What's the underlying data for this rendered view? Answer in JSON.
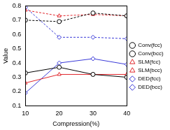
{
  "chart_data": {
    "type": "line",
    "x_label": "Compression(%)",
    "y_label": "Value",
    "x": [
      10,
      20,
      30,
      40
    ],
    "xlim": [
      10,
      40
    ],
    "xticks": [
      10,
      20,
      30,
      40
    ],
    "ylim": [
      0.1,
      0.8
    ],
    "yticks": [
      0.1,
      0.2,
      0.3,
      0.4,
      0.5,
      0.6,
      0.7,
      0.8
    ],
    "grid": false,
    "legend": "right",
    "series": [
      {
        "name": "Conv(fcc)",
        "color": "#000000",
        "marker": "circle",
        "line_style": "solid",
        "values": [
          0.33,
          0.37,
          0.32,
          0.3
        ]
      },
      {
        "name": "Conv(bcc)",
        "color": "#000000",
        "marker": "circle",
        "line_style": "dashed",
        "values": [
          0.7,
          0.69,
          0.75,
          0.73
        ]
      },
      {
        "name": "SLM(fcc)",
        "color": "#e0262c",
        "marker": "triangle",
        "line_style": "solid",
        "values": [
          0.26,
          0.32,
          0.32,
          0.32
        ]
      },
      {
        "name": "SLM(bcc)",
        "color": "#e0262c",
        "marker": "triangle",
        "line_style": "dashed",
        "values": [
          0.77,
          0.73,
          0.74,
          0.73
        ]
      },
      {
        "name": "DED(fcc)",
        "color": "#3a3ad8",
        "marker": "diamond",
        "line_style": "solid",
        "values": [
          0.19,
          0.4,
          0.43,
          0.39
        ]
      },
      {
        "name": "DED(bcc)",
        "color": "#3a3ad8",
        "marker": "diamond",
        "line_style": "dashed",
        "values": [
          0.79,
          0.58,
          0.58,
          0.57
        ]
      }
    ]
  }
}
